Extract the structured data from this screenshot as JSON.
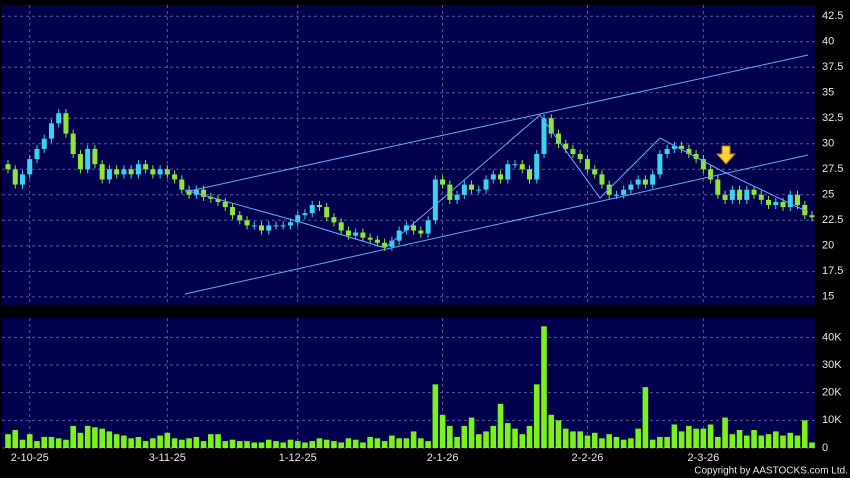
{
  "chart_data": [
    {
      "type": "candlestick",
      "categories": [
        null,
        null,
        null,
        "2-10-25",
        null,
        null,
        null,
        null,
        null,
        null,
        null,
        null,
        null,
        null,
        null,
        null,
        null,
        null,
        null,
        null,
        null,
        null,
        "3-11-25",
        null,
        null,
        null,
        null,
        null,
        null,
        null,
        null,
        null,
        null,
        null,
        null,
        null,
        null,
        null,
        null,
        null,
        "1-12-25",
        null,
        null,
        null,
        null,
        null,
        null,
        null,
        null,
        null,
        null,
        null,
        null,
        null,
        null,
        null,
        null,
        null,
        null,
        null,
        "2-1-26",
        null,
        null,
        null,
        null,
        null,
        null,
        null,
        null,
        null,
        null,
        null,
        null,
        null,
        null,
        null,
        null,
        null,
        null,
        null,
        "2-2-26",
        null,
        null,
        null,
        null,
        null,
        null,
        null,
        null,
        null,
        null,
        null,
        null,
        null,
        null,
        null,
        "2-3-26",
        null,
        null,
        null,
        null,
        null,
        null,
        null,
        null,
        null,
        null,
        null,
        null,
        null,
        null,
        null
      ],
      "open": [
        28.0,
        27.5,
        26.0,
        27.0,
        28.5,
        29.5,
        30.5,
        32.0,
        33.0,
        31.0,
        29.0,
        27.5,
        29.5,
        28.0,
        26.5,
        27.5,
        27.0,
        27.5,
        27.0,
        28.0,
        27.5,
        27.0,
        27.5,
        27.0,
        26.5,
        25.5,
        25.0,
        25.5,
        24.8,
        24.6,
        24.3,
        23.8,
        23.0,
        22.5,
        22.0,
        22.0,
        21.5,
        22.0,
        22.0,
        22.0,
        22.3,
        23.0,
        23.2,
        24.0,
        23.8,
        22.8,
        22.3,
        21.5,
        21.0,
        21.3,
        20.8,
        20.6,
        20.3,
        19.9,
        20.5,
        21.5,
        22.0,
        21.5,
        21.2,
        22.5,
        26.5,
        26.0,
        24.5,
        25.0,
        26.0,
        25.5,
        25.5,
        26.5,
        27.0,
        26.5,
        28.0,
        28.0,
        27.5,
        26.5,
        29.0,
        32.5,
        31.0,
        30.0,
        29.5,
        29.0,
        28.5,
        27.5,
        27.0,
        26.0,
        25.0,
        25.0,
        25.5,
        26.0,
        26.5,
        26.0,
        27.0,
        29.0,
        29.5,
        29.8,
        29.5,
        29.0,
        28.5,
        27.5,
        26.5,
        25.0,
        24.5,
        25.5,
        24.5,
        25.5,
        25.0,
        24.5,
        24.0,
        24.3,
        23.8,
        25.0,
        24.0,
        23.0
      ],
      "high": [
        28.4,
        27.9,
        27.4,
        28.9,
        29.9,
        30.9,
        32.4,
        33.4,
        33.4,
        31.4,
        29.4,
        29.9,
        29.9,
        28.4,
        27.9,
        27.9,
        27.9,
        27.9,
        28.4,
        28.4,
        27.9,
        27.9,
        27.9,
        27.4,
        26.9,
        25.9,
        25.9,
        25.9,
        25.2,
        25.0,
        24.7,
        24.2,
        23.4,
        22.9,
        22.4,
        22.4,
        22.4,
        22.4,
        22.4,
        22.7,
        23.4,
        23.6,
        24.4,
        24.4,
        24.2,
        23.2,
        22.7,
        21.9,
        21.7,
        21.7,
        21.2,
        21.0,
        20.7,
        20.9,
        21.9,
        22.4,
        22.4,
        21.9,
        22.9,
        26.9,
        26.9,
        26.4,
        25.4,
        26.4,
        26.4,
        25.9,
        26.9,
        27.4,
        27.4,
        28.4,
        28.4,
        28.4,
        27.9,
        29.4,
        32.9,
        32.9,
        31.4,
        30.4,
        29.9,
        29.4,
        28.9,
        27.9,
        27.4,
        26.4,
        25.4,
        25.9,
        26.4,
        26.9,
        26.9,
        27.4,
        29.4,
        29.9,
        30.2,
        30.2,
        29.9,
        29.4,
        28.9,
        27.9,
        26.9,
        25.4,
        25.9,
        25.9,
        25.9,
        25.9,
        25.4,
        24.9,
        24.7,
        24.7,
        25.4,
        25.4,
        24.4,
        23.4
      ],
      "low": [
        27.1,
        25.6,
        25.6,
        26.6,
        28.1,
        29.1,
        30.1,
        31.6,
        30.6,
        28.6,
        27.1,
        27.1,
        27.6,
        26.1,
        26.1,
        26.6,
        26.6,
        26.6,
        26.6,
        27.1,
        26.6,
        26.6,
        26.6,
        26.1,
        25.1,
        24.6,
        24.6,
        24.4,
        24.2,
        23.9,
        23.4,
        22.6,
        22.1,
        21.6,
        21.6,
        21.1,
        21.1,
        21.6,
        21.6,
        21.6,
        21.9,
        22.6,
        22.8,
        23.4,
        22.4,
        21.9,
        21.1,
        20.6,
        20.6,
        20.4,
        20.2,
        19.9,
        19.5,
        19.5,
        20.1,
        21.1,
        21.1,
        20.8,
        20.8,
        22.1,
        25.6,
        24.1,
        24.1,
        24.6,
        25.1,
        25.1,
        25.1,
        26.1,
        26.1,
        26.1,
        27.6,
        27.1,
        26.1,
        26.1,
        28.6,
        30.6,
        29.6,
        29.1,
        28.6,
        28.1,
        27.1,
        26.6,
        25.6,
        24.6,
        24.6,
        24.6,
        25.1,
        25.6,
        25.6,
        25.6,
        26.6,
        28.6,
        29.1,
        29.1,
        28.6,
        28.1,
        27.1,
        26.1,
        24.6,
        24.1,
        24.1,
        24.1,
        24.1,
        24.6,
        24.1,
        23.6,
        23.6,
        23.4,
        23.4,
        23.6,
        22.6,
        22.4
      ],
      "close": [
        27.5,
        26.0,
        27.0,
        28.5,
        29.5,
        30.5,
        32.0,
        33.0,
        31.0,
        29.0,
        27.5,
        29.5,
        28.0,
        26.5,
        27.5,
        27.0,
        27.5,
        27.0,
        28.0,
        27.5,
        27.0,
        27.5,
        27.0,
        26.5,
        25.5,
        25.0,
        25.5,
        24.8,
        24.6,
        24.3,
        23.8,
        23.0,
        22.5,
        22.0,
        22.0,
        21.5,
        22.0,
        22.0,
        22.0,
        22.3,
        23.0,
        23.2,
        24.0,
        23.8,
        22.8,
        22.3,
        21.5,
        21.0,
        21.3,
        20.8,
        20.6,
        20.3,
        19.9,
        20.5,
        21.5,
        22.0,
        21.5,
        21.2,
        22.5,
        26.5,
        26.0,
        24.5,
        25.0,
        26.0,
        25.5,
        25.5,
        26.5,
        27.0,
        26.5,
        28.0,
        28.0,
        27.5,
        26.5,
        29.0,
        32.5,
        31.0,
        30.0,
        29.5,
        29.0,
        28.5,
        27.5,
        27.0,
        26.0,
        25.0,
        25.0,
        25.5,
        26.0,
        26.5,
        26.0,
        27.0,
        29.0,
        29.5,
        29.8,
        29.5,
        29.0,
        28.5,
        27.5,
        26.5,
        25.0,
        24.5,
        25.5,
        24.5,
        25.5,
        25.0,
        24.5,
        24.0,
        24.3,
        23.8,
        25.0,
        24.0,
        23.0,
        22.8
      ],
      "up_color": "#3cd2f2",
      "down_color": "#8ee63a",
      "ylim": [
        14.2,
        43.6
      ],
      "yticks": [
        15,
        17.5,
        20,
        22.5,
        25,
        27.5,
        30,
        32.5,
        35,
        37.5,
        40,
        42.5
      ],
      "grid": true
    },
    {
      "type": "bar",
      "values": [
        5000,
        6500,
        3000,
        5000,
        2500,
        4000,
        4000,
        3500,
        3000,
        8000,
        5500,
        8000,
        7500,
        7000,
        6000,
        5000,
        4500,
        3500,
        4000,
        2500,
        3500,
        4500,
        5500,
        3500,
        3000,
        3500,
        4000,
        2500,
        5000,
        5000,
        2500,
        3000,
        2500,
        2500,
        2000,
        2000,
        3000,
        2500,
        2000,
        3000,
        2500,
        2000,
        2500,
        3500,
        3000,
        2500,
        2000,
        3500,
        3000,
        2000,
        4000,
        3500,
        2500,
        4500,
        3500,
        3500,
        6000,
        3500,
        2500,
        23000,
        12000,
        8000,
        4000,
        8000,
        11000,
        5000,
        6000,
        8000,
        16000,
        9000,
        7000,
        5000,
        8000,
        23000,
        44000,
        12000,
        10000,
        7000,
        6000,
        6000,
        4500,
        5500,
        3500,
        5000,
        4000,
        3000,
        3500,
        7000,
        22000,
        3000,
        4000,
        4000,
        8500,
        6000,
        8000,
        7000,
        7000,
        8500,
        4000,
        11000,
        5000,
        6500,
        4500,
        6500,
        4500,
        5000,
        6000,
        4500,
        5500,
        4500,
        10000,
        2000
      ],
      "color": "#7cf21c",
      "ylim": [
        0,
        47000
      ],
      "yticks": [
        0,
        {
          "value": 10000,
          "label": "10K"
        },
        {
          "value": 20000,
          "label": "20K"
        },
        {
          "value": 30000,
          "label": "30K"
        },
        {
          "value": 40000,
          "label": "40K"
        }
      ],
      "grid": true
    }
  ],
  "copyright": "Copyright by AASTOCKS.com Ltd."
}
